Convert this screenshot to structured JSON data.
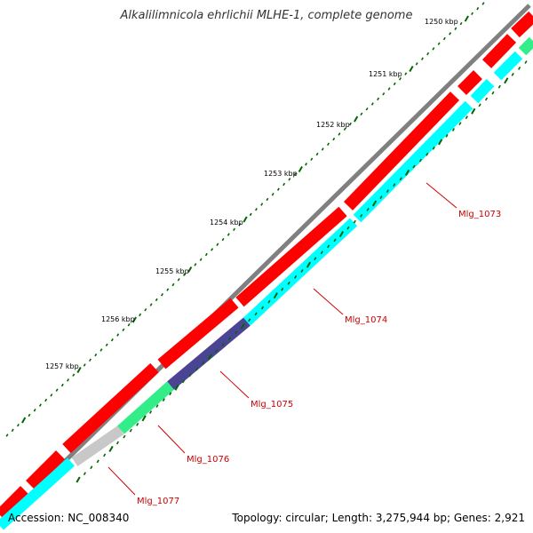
{
  "title": "Alkalilimnicola ehrlichii MLHE-1, complete genome",
  "accession": "Accession: NC_008340",
  "summary": "Topology: circular; Length: 3,275,944 bp; Genes: 2,921",
  "colors": {
    "backbone": "#808080",
    "forward_cds": "#ff0000",
    "reverse_cds": "#00ffff",
    "label": "#cc0000",
    "tick": "#006600",
    "gene_purple": "#4b4394",
    "gene_green": "#33ee88",
    "gene_grey": "#c8c8c8"
  },
  "tick_labels": [
    "1257 kbp",
    "1256 kbp",
    "1255 kbp",
    "1254 kbp",
    "1253 kbp",
    "1252 kbp",
    "1251 kbp",
    "1250 kbp"
  ],
  "genes": [
    {
      "name": "Mlg_1073",
      "color": "#00ffff"
    },
    {
      "name": "Mlg_1074",
      "color": "#00ffff"
    },
    {
      "name": "Mlg_1075",
      "color": "#4b4394"
    },
    {
      "name": "Mlg_1076",
      "color": "#33ee88"
    },
    {
      "name": "Mlg_1077",
      "color": "#c8c8c8"
    }
  ]
}
